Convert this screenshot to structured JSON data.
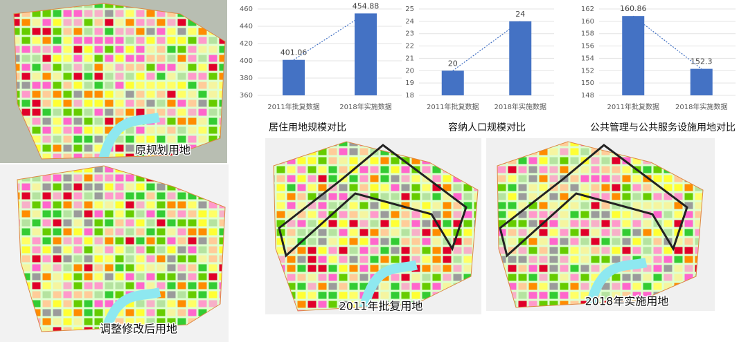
{
  "chart_data": [
    {
      "type": "bar",
      "title": "居住用地规模对比",
      "categories": [
        "2011年批复数据",
        "2018年实施数据"
      ],
      "values": [
        401.06,
        454.88
      ],
      "color": "#4472c4",
      "ylim": [
        360,
        460
      ],
      "yticks": [
        360,
        380,
        400,
        420,
        440,
        460
      ],
      "grid": true,
      "trendline": true
    },
    {
      "type": "bar",
      "title": "容纳人口规模对比",
      "categories": [
        "2011年批复数据",
        "2018年实施数据"
      ],
      "values": [
        20,
        24
      ],
      "color": "#4472c4",
      "ylim": [
        18,
        25
      ],
      "yticks": [
        18,
        19,
        20,
        21,
        22,
        23,
        24,
        25
      ],
      "grid": true,
      "trendline": true
    },
    {
      "type": "bar",
      "title": "公共管理与公共服务设施用地对比",
      "categories": [
        "2011年批复数据",
        "2018年实施数据"
      ],
      "values": [
        160.86,
        152.3
      ],
      "color": "#4472c4",
      "ylim": [
        148,
        162
      ],
      "yticks": [
        148,
        150,
        152,
        154,
        156,
        158,
        160,
        162
      ],
      "grid": true,
      "trendline": true
    }
  ],
  "maps": [
    {
      "label": "原规划用地"
    },
    {
      "label": "调整修改后用地"
    },
    {
      "label": "2011年批复用地"
    },
    {
      "label": "2018年实施用地"
    }
  ]
}
